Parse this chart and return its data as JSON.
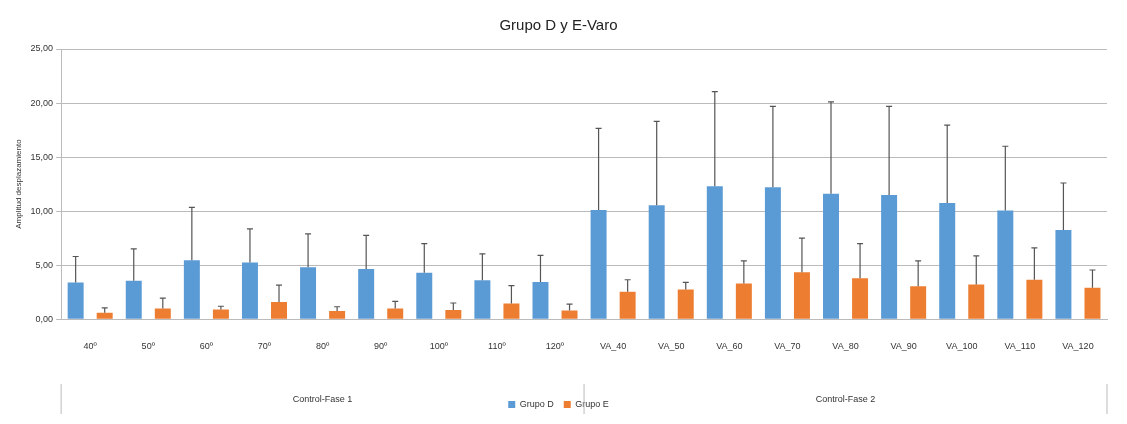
{
  "chart_data": {
    "type": "bar",
    "title": "Grupo D y E-Varo",
    "ylabel": "Amplitud desplazamiento",
    "categories": [
      "40º",
      "50º",
      "60º",
      "70º",
      "80º",
      "90º",
      "100º",
      "110º",
      "120º",
      "VA_40",
      "VA_50",
      "VA_60",
      "VA_70",
      "VA_80",
      "VA_90",
      "VA_100",
      "VA_110",
      "VA_120"
    ],
    "series": [
      {
        "name": "Grupo D",
        "color": "#5b9bd5",
        "values": [
          3.4,
          3.55,
          5.45,
          5.25,
          4.8,
          4.65,
          4.3,
          3.6,
          3.45,
          10.1,
          10.55,
          12.3,
          12.2,
          11.6,
          11.5,
          10.75,
          10.05,
          8.25
        ],
        "errors": [
          [
            3.4,
            5.8
          ],
          [
            3.55,
            6.5
          ],
          [
            5.45,
            10.35
          ],
          [
            5.25,
            8.35
          ],
          [
            4.8,
            7.9
          ],
          [
            4.65,
            7.75
          ],
          [
            4.3,
            7.0
          ],
          [
            3.6,
            6.05
          ],
          [
            3.45,
            5.9
          ],
          [
            10.1,
            17.65
          ],
          [
            10.55,
            18.3
          ],
          [
            12.3,
            21.05
          ],
          [
            12.2,
            19.7
          ],
          [
            11.6,
            20.1
          ],
          [
            11.5,
            19.7
          ],
          [
            10.75,
            17.95
          ],
          [
            10.05,
            16.0
          ],
          [
            8.25,
            12.6
          ]
        ]
      },
      {
        "name": "Grupo E",
        "color": "#ed7d31",
        "values": [
          0.6,
          1.0,
          0.9,
          1.6,
          0.75,
          1.0,
          0.85,
          1.45,
          0.8,
          2.55,
          2.75,
          3.3,
          4.35,
          3.8,
          3.05,
          3.2,
          3.65,
          2.9
        ],
        "errors": [
          [
            0.6,
            1.05
          ],
          [
            1.0,
            1.95
          ],
          [
            0.9,
            1.2
          ],
          [
            1.6,
            3.15
          ],
          [
            0.75,
            1.15
          ],
          [
            1.0,
            1.65
          ],
          [
            0.85,
            1.5
          ],
          [
            1.45,
            3.1
          ],
          [
            0.8,
            1.4
          ],
          [
            2.55,
            3.65
          ],
          [
            2.75,
            3.4
          ],
          [
            3.3,
            5.4
          ],
          [
            4.35,
            7.5
          ],
          [
            3.8,
            7.0
          ],
          [
            3.05,
            5.4
          ],
          [
            3.2,
            5.85
          ],
          [
            3.65,
            6.6
          ],
          [
            2.9,
            4.55
          ]
        ]
      }
    ],
    "annotations": [
      "Control-Fase 1",
      "Control-Fase 2"
    ],
    "ylim": [
      0,
      25
    ],
    "yticks": [
      {
        "value": 0,
        "label": "0,00"
      },
      {
        "value": 5,
        "label": "5,00"
      },
      {
        "value": 10,
        "label": "10,00"
      },
      {
        "value": 15,
        "label": "15,00"
      },
      {
        "value": 20,
        "label": "20,00"
      },
      {
        "value": 25,
        "label": "25,00"
      }
    ],
    "grid": "y",
    "legend": "bottom"
  }
}
